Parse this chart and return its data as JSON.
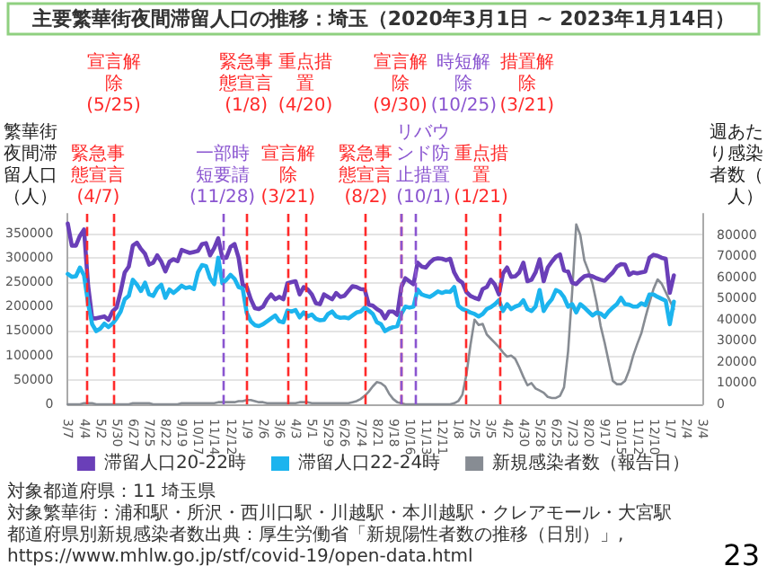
{
  "chart_data": {
    "type": "line",
    "title": "主要繁華街夜間滞留人口の推移：埼玉（2020年3月1日 ~ 2023年1月14日）",
    "ylabel": "繁華街夜間滞留人口（人）",
    "y2label": "週あたり感染者数（人）",
    "x": [
      "2020-03-07",
      "2020-03-14",
      "2020-03-21",
      "2020-03-28",
      "2020-04-04",
      "2020-04-11",
      "2020-04-18",
      "2020-04-25",
      "2020-05-02",
      "2020-05-09",
      "2020-05-16",
      "2020-05-23",
      "2020-05-30",
      "2020-06-06",
      "2020-06-13",
      "2020-06-20",
      "2020-06-27",
      "2020-07-04",
      "2020-07-11",
      "2020-07-18",
      "2020-07-25",
      "2020-08-01",
      "2020-08-08",
      "2020-08-15",
      "2020-08-22",
      "2020-08-29",
      "2020-09-05",
      "2020-09-12",
      "2020-09-19",
      "2020-09-26",
      "2020-10-03",
      "2020-10-10",
      "2020-10-17",
      "2020-10-24",
      "2020-10-31",
      "2020-11-07",
      "2020-11-14",
      "2020-11-21",
      "2020-11-28",
      "2020-12-05",
      "2020-12-12",
      "2020-12-19",
      "2020-12-26",
      "2021-01-02",
      "2021-01-09",
      "2021-01-16",
      "2021-01-23",
      "2021-01-30",
      "2021-02-06",
      "2021-02-13",
      "2021-02-20",
      "2021-02-27",
      "2021-03-06",
      "2021-03-13",
      "2021-03-20",
      "2021-03-27",
      "2021-04-03",
      "2021-04-10",
      "2021-04-17",
      "2021-04-24",
      "2021-05-01",
      "2021-05-08",
      "2021-05-15",
      "2021-05-22",
      "2021-05-29",
      "2021-06-05",
      "2021-06-12",
      "2021-06-19",
      "2021-06-26",
      "2021-07-03",
      "2021-07-10",
      "2021-07-17",
      "2021-07-24",
      "2021-07-31",
      "2021-08-07",
      "2021-08-14",
      "2021-08-21",
      "2021-08-28",
      "2021-09-04",
      "2021-09-11",
      "2021-09-18",
      "2021-09-25",
      "2021-10-02",
      "2021-10-09",
      "2021-10-16",
      "2021-10-23",
      "2021-10-30",
      "2021-11-06",
      "2021-11-13",
      "2021-11-20",
      "2021-11-27",
      "2021-12-04",
      "2021-12-11",
      "2021-12-18",
      "2021-12-25",
      "2022-01-01",
      "2022-01-08",
      "2022-01-15",
      "2022-01-22",
      "2022-01-29",
      "2022-02-05",
      "2022-02-12",
      "2022-02-19",
      "2022-02-26",
      "2022-03-05",
      "2022-03-12",
      "2022-03-19",
      "2022-03-26",
      "2022-04-02",
      "2022-04-09",
      "2022-04-16",
      "2022-04-23",
      "2022-04-30",
      "2022-05-07",
      "2022-05-14",
      "2022-05-21",
      "2022-05-28",
      "2022-06-04",
      "2022-06-11",
      "2022-06-18",
      "2022-06-25",
      "2022-07-02",
      "2022-07-09",
      "2022-07-16",
      "2022-07-23",
      "2022-07-30",
      "2022-08-06",
      "2022-08-13",
      "2022-08-20",
      "2022-08-27",
      "2022-09-03",
      "2022-09-10",
      "2022-09-17",
      "2022-09-24",
      "2022-10-01",
      "2022-10-08",
      "2022-10-15",
      "2022-10-22",
      "2022-10-29",
      "2022-11-05",
      "2022-11-12",
      "2022-11-19",
      "2022-11-26",
      "2022-12-03",
      "2022-12-10",
      "2022-12-17",
      "2022-12-24",
      "2022-12-31",
      "2023-01-07",
      "2023-01-14"
    ],
    "series": [
      {
        "name": "滞留人口20-22時",
        "color": "#6a3fb8",
        "values": [
          370000,
          325000,
          325000,
          345000,
          358000,
          243000,
          176000,
          176000,
          178000,
          180000,
          173000,
          190000,
          198000,
          231000,
          270000,
          282000,
          325000,
          331000,
          318000,
          308000,
          286000,
          290000,
          305000,
          292000,
          272000,
          292000,
          297000,
          293000,
          316000,
          313000,
          310000,
          312000,
          314000,
          328000,
          330000,
          305000,
          320000,
          340000,
          300000,
          300000,
          322000,
          328000,
          300000,
          245000,
          240000,
          215000,
          197000,
          195000,
          200000,
          215000,
          225000,
          215000,
          220000,
          215000,
          248000,
          250000,
          252000,
          225000,
          240000,
          235000,
          225000,
          207000,
          205000,
          225000,
          220000,
          215000,
          228000,
          220000,
          222000,
          232000,
          242000,
          240000,
          236000,
          235000,
          204000,
          202000,
          195000,
          190000,
          176000,
          190000,
          190000,
          183000,
          240000,
          258000,
          252000,
          246000,
          290000,
          282000,
          280000,
          290000,
          297000,
          299000,
          298000,
          295000,
          298000,
          270000,
          255000,
          249000,
          230000,
          222000,
          218000,
          215000,
          236000,
          240000,
          255000,
          245000,
          225000,
          268000,
          280000,
          261000,
          262000,
          270000,
          290000,
          252000,
          255000,
          270000,
          297000,
          252000,
          280000,
          292000,
          302000,
          307000,
          274000,
          272000,
          249000,
          246000,
          255000,
          262000,
          264000,
          262000,
          258000,
          255000,
          253000,
          262000,
          270000,
          282000,
          287000,
          286000,
          265000,
          270000,
          268000,
          270000,
          272000,
          300000,
          306000,
          304000,
          300000,
          298000,
          228000,
          264000
        ]
      },
      {
        "name": "滞留人口22-24時",
        "color": "#1cb4ee",
        "values": [
          267000,
          261000,
          262000,
          280000,
          264000,
          207000,
          164000,
          150000,
          155000,
          165000,
          158000,
          165000,
          176000,
          190000,
          215000,
          222000,
          255000,
          245000,
          232000,
          249000,
          225000,
          222000,
          237000,
          245000,
          218000,
          235000,
          228000,
          235000,
          243000,
          238000,
          240000,
          236000,
          270000,
          285000,
          283000,
          258000,
          246000,
          300000,
          248000,
          255000,
          265000,
          257000,
          240000,
          237000,
          187000,
          170000,
          162000,
          160000,
          164000,
          170000,
          176000,
          182000,
          170000,
          168000,
          192000,
          190000,
          193000,
          178000,
          188000,
          180000,
          184000,
          175000,
          172000,
          173000,
          185000,
          190000,
          180000,
          177000,
          178000,
          176000,
          182000,
          188000,
          190000,
          198000,
          192000,
          185000,
          168000,
          164000,
          150000,
          155000,
          158000,
          160000,
          185000,
          200000,
          198000,
          200000,
          235000,
          225000,
          222000,
          220000,
          225000,
          231000,
          228000,
          231000,
          230000,
          240000,
          202000,
          195000,
          192000,
          188000,
          185000,
          180000,
          185000,
          195000,
          199000,
          205000,
          213000,
          191000,
          205000,
          195000,
          200000,
          203000,
          213000,
          195000,
          191000,
          200000,
          234000,
          191000,
          205000,
          215000,
          234000,
          230000,
          219000,
          200000,
          205000,
          188000,
          205000,
          198000,
          190000,
          182000,
          188000,
          186000,
          179000,
          190000,
          198000,
          205000,
          218000,
          205000,
          204000,
          200000,
          200000,
          207000,
          203000,
          225000,
          225000,
          220000,
          216000,
          212000,
          164000,
          210000
        ]
      },
      {
        "name": "新規感染者数（報告日）",
        "color": "#878c93",
        "axis": "y2",
        "values": [
          0,
          0,
          0,
          0,
          500,
          500,
          500,
          0,
          0,
          0,
          0,
          0,
          0,
          0,
          0,
          0,
          500,
          500,
          500,
          500,
          500,
          0,
          0,
          0,
          0,
          0,
          0,
          0,
          500,
          500,
          500,
          500,
          500,
          500,
          500,
          500,
          500,
          1000,
          1000,
          1000,
          1000,
          1000,
          1500,
          1500,
          2000,
          2000,
          1500,
          1000,
          1000,
          500,
          500,
          500,
          500,
          500,
          500,
          500,
          500,
          1000,
          1000,
          1000,
          500,
          500,
          500,
          500,
          500,
          500,
          500,
          500,
          500,
          500,
          1000,
          1500,
          2500,
          4000,
          6000,
          8500,
          10500,
          10000,
          8500,
          5000,
          2500,
          1000,
          500,
          0,
          0,
          0,
          0,
          0,
          0,
          0,
          0,
          0,
          0,
          0,
          0,
          500,
          1500,
          4500,
          14000,
          28000,
          40000,
          37500,
          38000,
          33000,
          31000,
          29000,
          27000,
          24500,
          22500,
          23000,
          21500,
          17500,
          13000,
          9000,
          10000,
          7500,
          6500,
          5500,
          3500,
          3000,
          3000,
          4000,
          8000,
          25000,
          53000,
          85000,
          80000,
          68000,
          63000,
          57000,
          48000,
          37000,
          29000,
          20000,
          11000,
          9500,
          9500,
          11000,
          16000,
          23000,
          28500,
          33500,
          41000,
          48000,
          54500,
          59000,
          57000,
          53000,
          49000,
          45000
        ]
      }
    ],
    "xlim": [
      "2020-03-07",
      "2023-03-04"
    ],
    "xticks": [
      {
        "value": "2020-03-07",
        "label": "3/7"
      },
      {
        "value": "2020-04-04",
        "label": "4/4"
      },
      {
        "value": "2020-05-02",
        "label": "5/2"
      },
      {
        "value": "2020-05-30",
        "label": "5/30"
      },
      {
        "value": "2020-06-27",
        "label": "6/27"
      },
      {
        "value": "2020-07-25",
        "label": "7/25"
      },
      {
        "value": "2020-08-22",
        "label": "8/22"
      },
      {
        "value": "2020-09-19",
        "label": "9/19"
      },
      {
        "value": "2020-10-17",
        "label": "10/17"
      },
      {
        "value": "2020-11-14",
        "label": "11/14"
      },
      {
        "value": "2020-12-12",
        "label": "12/12"
      },
      {
        "value": "2021-01-09",
        "label": "1/9"
      },
      {
        "value": "2021-02-06",
        "label": "2/6"
      },
      {
        "value": "2021-03-06",
        "label": "3/6"
      },
      {
        "value": "2021-04-03",
        "label": "4/3"
      },
      {
        "value": "2021-05-01",
        "label": "5/1"
      },
      {
        "value": "2021-05-29",
        "label": "5/29"
      },
      {
        "value": "2021-06-26",
        "label": "6/26"
      },
      {
        "value": "2021-07-24",
        "label": "7/24"
      },
      {
        "value": "2021-08-21",
        "label": "8/21"
      },
      {
        "value": "2021-09-18",
        "label": "9/18"
      },
      {
        "value": "2021-10-16",
        "label": "10/16"
      },
      {
        "value": "2021-11-13",
        "label": "11/13"
      },
      {
        "value": "2021-12-11",
        "label": "12/11"
      },
      {
        "value": "2022-01-08",
        "label": "1/8"
      },
      {
        "value": "2022-02-05",
        "label": "2/5"
      },
      {
        "value": "2022-03-05",
        "label": "3/5"
      },
      {
        "value": "2022-04-02",
        "label": "4/2"
      },
      {
        "value": "2022-04-30",
        "label": "4/30"
      },
      {
        "value": "2022-05-28",
        "label": "5/28"
      },
      {
        "value": "2022-06-25",
        "label": "6/25"
      },
      {
        "value": "2022-07-23",
        "label": "7/23"
      },
      {
        "value": "2022-08-20",
        "label": "8/20"
      },
      {
        "value": "2022-09-17",
        "label": "9/17"
      },
      {
        "value": "2022-10-15",
        "label": "10/15"
      },
      {
        "value": "2022-11-12",
        "label": "11/12"
      },
      {
        "value": "2022-12-10",
        "label": "12/10"
      },
      {
        "value": "2023-01-07",
        "label": "1/7"
      },
      {
        "value": "2023-02-04",
        "label": "2/4"
      },
      {
        "value": "2023-03-04",
        "label": "3/4"
      }
    ],
    "ylim": [
      0,
      390000
    ],
    "yticks": [
      0,
      50000,
      100000,
      150000,
      200000,
      250000,
      300000,
      350000
    ],
    "y2lim": [
      0,
      90000
    ],
    "y2ticks": [
      0,
      10000,
      20000,
      30000,
      40000,
      50000,
      60000,
      70000,
      80000
    ],
    "ref_lines": [
      {
        "axis": "x",
        "value": "2020-04-07",
        "label": "緊急事態宣言(4/7)",
        "color": "#ff2a2a",
        "line_style": "dashed"
      },
      {
        "axis": "x",
        "value": "2020-05-25",
        "label": "宣言解除(5/25)",
        "color": "#ff2a2a",
        "line_style": "dashed"
      },
      {
        "axis": "x",
        "value": "2020-11-28",
        "label": "一部時短要請(11/28)",
        "color": "#8a55d0",
        "line_style": "dashed"
      },
      {
        "axis": "x",
        "value": "2021-01-08",
        "label": "緊急事態宣言(1/8)",
        "color": "#ff2a2a",
        "line_style": "dashed"
      },
      {
        "axis": "x",
        "value": "2021-03-21",
        "label": "宣言解除(3/21)",
        "color": "#ff2a2a",
        "line_style": "dashed"
      },
      {
        "axis": "x",
        "value": "2021-04-20",
        "label": "重点措置(4/20)",
        "color": "#ff2a2a",
        "line_style": "dashed"
      },
      {
        "axis": "x",
        "value": "2021-08-02",
        "label": "緊急事態宣言(8/2)",
        "color": "#ff2a2a",
        "line_style": "dashed"
      },
      {
        "axis": "x",
        "value": "2021-09-30",
        "label": "宣言解除(9/30)",
        "color": "#ff2a2a",
        "line_style": "dashed"
      },
      {
        "axis": "x",
        "value": "2021-10-01",
        "label": "リバウンド防止措置(10/1)",
        "color": "#8a55d0",
        "line_style": "dashed"
      },
      {
        "axis": "x",
        "value": "2021-10-25",
        "label": "時短解除(10/25)",
        "color": "#8a55d0",
        "line_style": "dashed"
      },
      {
        "axis": "x",
        "value": "2022-01-21",
        "label": "重点措置(1/21)",
        "color": "#ff2a2a",
        "line_style": "dashed"
      },
      {
        "axis": "x",
        "value": "2022-03-21",
        "label": "措置解除(3/21)",
        "color": "#ff2a2a",
        "line_style": "dashed"
      }
    ],
    "annotations": [
      "対象都道府県：11 埼玉県",
      "対象繁華街：浦和駅・所沢・西川口駅・川越駅・本川越駅・クレアモール・大宮駅",
      "都道府県別新規感染者数出典：厚生労働省「新規陽性者数の推移（日別）」, https://www.mhlw.go.jp/stf/covid-19/open-data.html",
      "23"
    ],
    "grid": "y",
    "legend": "bottom",
    "marker": "none",
    "line_style": "solid"
  }
}
